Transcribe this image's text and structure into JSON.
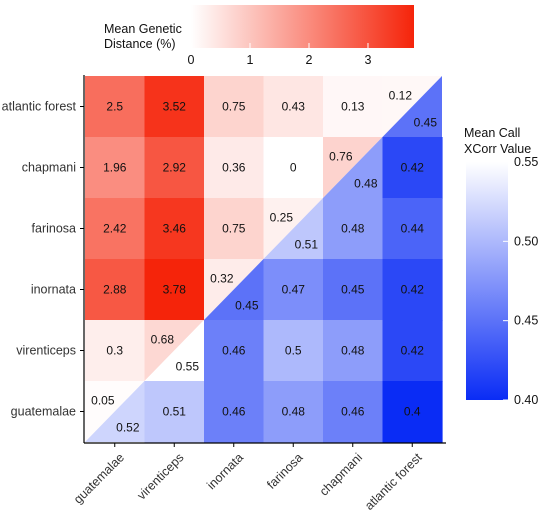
{
  "chart_data": {
    "type": "heatmap",
    "row_labels": [
      "atlantic forest",
      "chapmani",
      "farinosa",
      "inornata",
      "virenticeps",
      "guatemalae"
    ],
    "col_labels": [
      "guatemalae",
      "virenticeps",
      "inornata",
      "farinosa",
      "chapmani",
      "atlantic forest"
    ],
    "upper_triangle": {
      "title": "Mean Genetic Distance (%)",
      "title_line1": "Mean Genetic",
      "title_line2": "Distance (%)",
      "ticks": [
        "0",
        "1",
        "2",
        "3"
      ],
      "range": [
        0,
        3.78
      ],
      "color_low": "#ffffff",
      "color_high": "#f5240a"
    },
    "lower_triangle": {
      "title": "Mean Call XCorr Value",
      "title_line1": "Mean Call",
      "title_line2": "XCorr Value",
      "ticks": [
        "0.55",
        "0.50",
        "0.45",
        "0.40"
      ],
      "range": [
        0.4,
        0.55
      ],
      "color_low": "#0a2cf5",
      "color_high": "#ffffff"
    },
    "genetic_distance": [
      [
        2.5,
        3.52,
        0.75,
        0.43,
        0.13,
        0.12
      ],
      [
        1.96,
        2.92,
        0.36,
        0,
        0.76,
        null
      ],
      [
        2.42,
        3.46,
        0.75,
        0.25,
        null,
        null
      ],
      [
        2.88,
        3.78,
        0.32,
        null,
        null,
        null
      ],
      [
        0.3,
        0.68,
        null,
        null,
        null,
        null
      ],
      [
        0.05,
        null,
        null,
        null,
        null,
        null
      ]
    ],
    "xcorr": [
      [
        null,
        null,
        null,
        null,
        null,
        0.45
      ],
      [
        null,
        null,
        null,
        null,
        0.48,
        0.42
      ],
      [
        null,
        null,
        null,
        0.51,
        0.48,
        0.44
      ],
      [
        null,
        null,
        0.45,
        0.47,
        0.45,
        0.42
      ],
      [
        null,
        0.55,
        0.46,
        0.5,
        0.48,
        0.42
      ],
      [
        0.52,
        0.51,
        0.46,
        0.48,
        0.46,
        0.4
      ]
    ]
  }
}
